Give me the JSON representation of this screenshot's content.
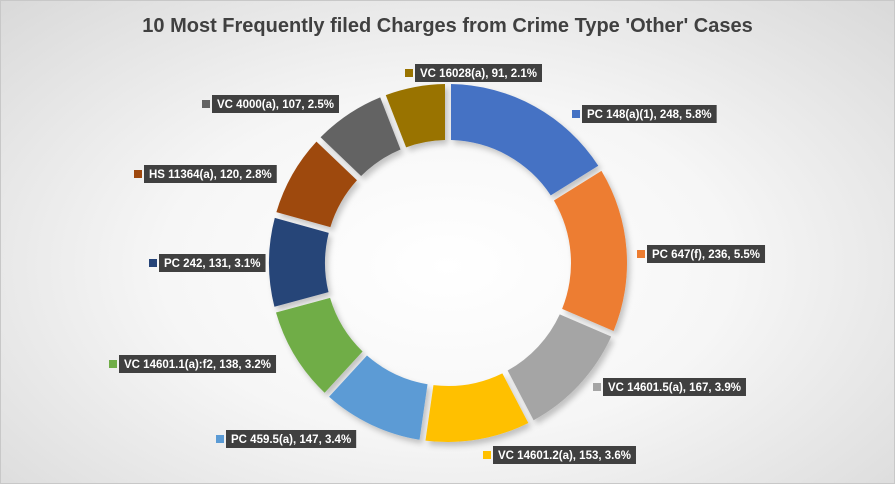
{
  "chart_data": {
    "type": "pie",
    "variant": "doughnut",
    "title": "10 Most Frequently filed Charges from Crime Type 'Other' Cases",
    "slices": [
      {
        "code": "PC",
        "charge": "148(a)(1)",
        "value": 248,
        "pct": "5.8%",
        "label": "PC  148(a)(1), 248, 5.8%",
        "color": "#4472C4"
      },
      {
        "code": "PC",
        "charge": "647(f)",
        "value": 236,
        "pct": "5.5%",
        "label": "PC  647(f), 236, 5.5%",
        "color": "#ED7D31"
      },
      {
        "code": "VC",
        "charge": "14601.5(a)",
        "value": 167,
        "pct": "3.9%",
        "label": "VC  14601.5(a), 167, 3.9%",
        "color": "#A5A5A5"
      },
      {
        "code": "VC",
        "charge": "14601.2(a)",
        "value": 153,
        "pct": "3.6%",
        "label": "VC  14601.2(a), 153, 3.6%",
        "color": "#FFC000"
      },
      {
        "code": "PC",
        "charge": "459.5(a)",
        "value": 147,
        "pct": "3.4%",
        "label": "PC  459.5(a), 147, 3.4%",
        "color": "#5B9BD5"
      },
      {
        "code": "VC",
        "charge": "14601.1(a):f2",
        "value": 138,
        "pct": "3.2%",
        "label": "VC  14601.1(a):f2, 138, 3.2%",
        "color": "#70AD47"
      },
      {
        "code": "PC",
        "charge": "242",
        "value": 131,
        "pct": "3.1%",
        "label": "PC  242, 131, 3.1%",
        "color": "#264478"
      },
      {
        "code": "HS",
        "charge": "11364(a)",
        "value": 120,
        "pct": "2.8%",
        "label": "HS  11364(a), 120, 2.8%",
        "color": "#9E480E"
      },
      {
        "code": "VC",
        "charge": "4000(a)",
        "value": 107,
        "pct": "2.5%",
        "label": "VC  4000(a), 107, 2.5%",
        "color": "#636363"
      },
      {
        "code": "VC",
        "charge": "16028(a)",
        "value": 91,
        "pct": "2.1%",
        "label": "VC  16028(a), 91, 2.1%",
        "color": "#997300"
      }
    ],
    "legend": "none",
    "data_labels": "callouts"
  }
}
